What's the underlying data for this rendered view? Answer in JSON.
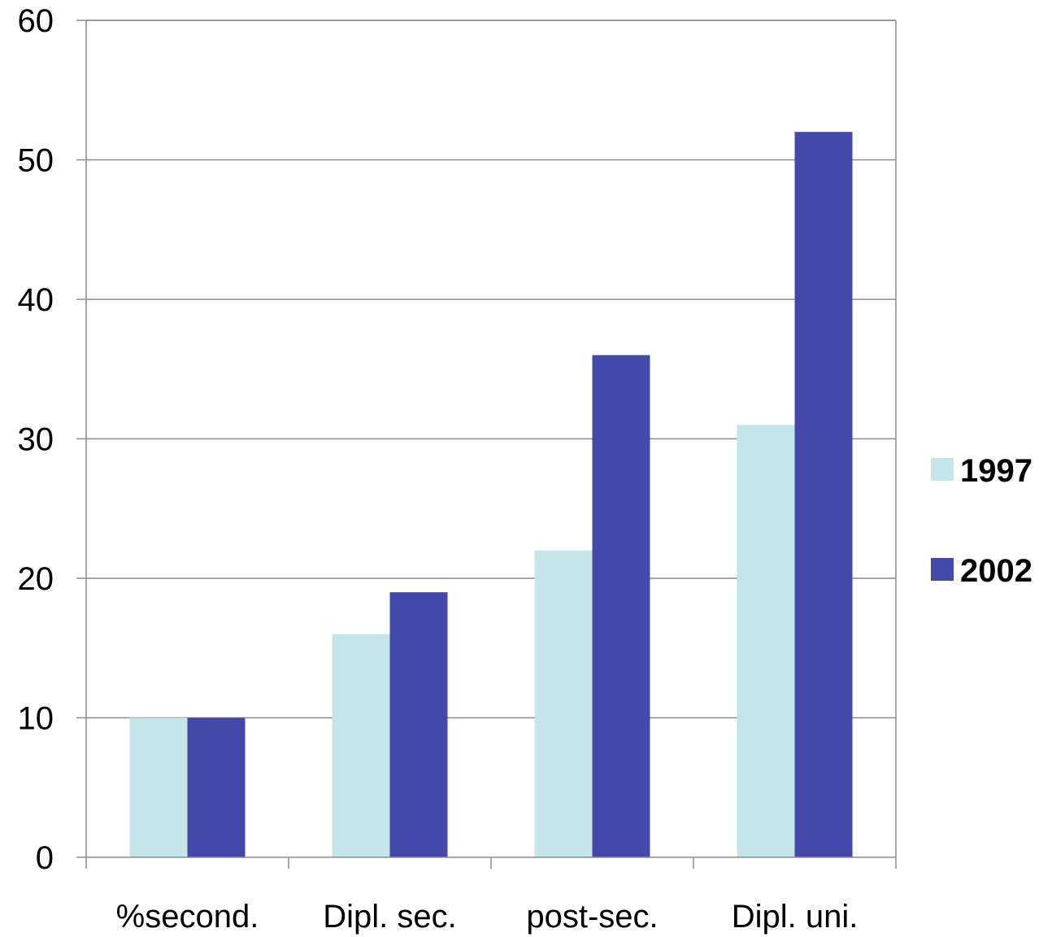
{
  "chart_data": {
    "type": "bar",
    "categories": [
      "%second.",
      "Dipl. sec.",
      "post-sec.",
      "Dipl. uni."
    ],
    "series": [
      {
        "name": "1997",
        "values": [
          10,
          16,
          22,
          31
        ],
        "color": "#c5e6e8"
      },
      {
        "name": "2002",
        "values": [
          10,
          19,
          36,
          52
        ],
        "color": "#4448a8"
      }
    ],
    "ylim": [
      0,
      60
    ],
    "yticks": [
      0,
      10,
      20,
      30,
      40,
      50,
      60
    ],
    "grid": true,
    "legend": "right",
    "title": "",
    "xlabel": "",
    "ylabel": ""
  }
}
